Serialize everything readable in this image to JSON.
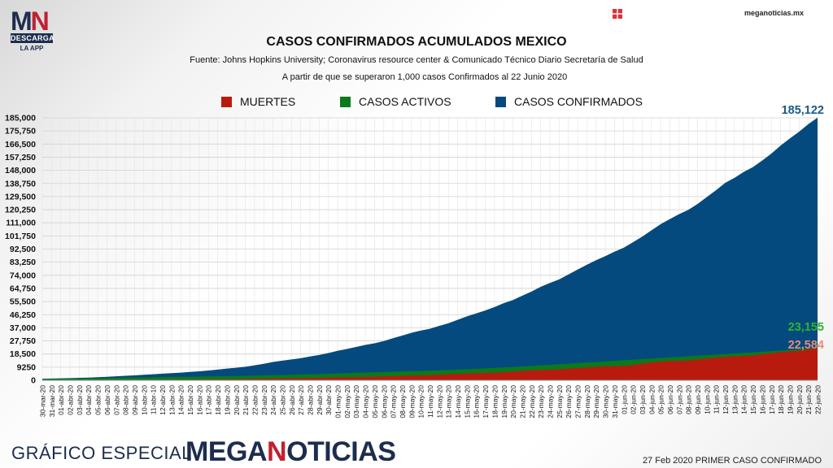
{
  "brand": {
    "logo_letters_1": "M",
    "logo_letters_2": "N",
    "logo_descarga": "DESCARGA",
    "logo_app": "LA APP",
    "site": "meganoticias.mx",
    "footer_left": "GRÁFICO ESPECIAL",
    "footer_brand_1": "MEGA",
    "footer_brand_2": "N",
    "footer_brand_3": "OTICIAS",
    "footer_right": "27 Feb 2020 PRIMER CASO CONFIRMADO",
    "colors": {
      "navy": "#1d2d4e",
      "red": "#c0212f"
    },
    "corner_icon": "grid-icon"
  },
  "chart_data": {
    "type": "area",
    "title": "CASOS CONFIRMADOS ACUMULADOS MEXICO",
    "subtitle": "Fuente: Johns Hopkins University; Coronavirus resource center & Comunicado Técnico Diario Secretaría de Salud",
    "subtitle2": "A partir de que se superaron 1,000 casos Confirmados al 22 Junio 2020",
    "ylim": [
      0,
      185000
    ],
    "yticks": [
      "0",
      "9250",
      "18,500",
      "27,750",
      "37,000",
      "46,250",
      "55,500",
      "64,750",
      "74,000",
      "83,250",
      "92,500",
      "101,750",
      "111,000",
      "120,250",
      "129,500",
      "138,750",
      "148,000",
      "157,250",
      "166,500",
      "175,750",
      "185,000"
    ],
    "grid": true,
    "legend_position": "top",
    "x": [
      "30-mar-20",
      "31-mar-20",
      "01-abr-20",
      "02-abr-20",
      "03-abr-20",
      "04-abr-20",
      "05-abr-20",
      "06-abr-20",
      "07-abr-20",
      "08-abr-20",
      "09-abr-20",
      "10-abr-20",
      "11-abr-10",
      "12-abr-20",
      "13-abr-20",
      "14-abr-20",
      "15-abr-20",
      "16-abr-20",
      "17-abr-20",
      "18-abr-20",
      "19-abr-20",
      "20-abr-20",
      "21-abr-20",
      "22-abr-20",
      "23-abr-20",
      "24-abr-20",
      "25-abr-20",
      "26-abr-20",
      "27-abr-20",
      "28-abr-20",
      "29-abr-20",
      "30-abr-20",
      "01-may-20",
      "02-may-20",
      "03-may-20",
      "04-may-20",
      "05-may-20",
      "06-may-20",
      "07-may-20",
      "08-may-20",
      "09-may-20",
      "10-may-20",
      "11-may-20",
      "12-may-20",
      "13-may-20",
      "14-may-20",
      "15-may-20",
      "16-may-20",
      "17-may-20",
      "18-may-20",
      "19-may-20",
      "20-may-20",
      "21-may-20",
      "22-may-20",
      "23-may-20",
      "24-may-20",
      "25-may-20",
      "26-may-20",
      "27-may-20",
      "28-may-20",
      "29-may-20",
      "30-may-20",
      "31-may-20",
      "01-jun-20",
      "02-jun-20",
      "03-jun-20",
      "04-jun-20",
      "05-jun-20",
      "06-jun-20",
      "07-jun-20",
      "08-jun-20",
      "09-jun-20",
      "10-jun-20",
      "11-jun-20",
      "12-jun-20",
      "13-jun-20",
      "14-jun-20",
      "15-jun-20",
      "16-jun-20",
      "17-jun-20",
      "18-jun-20",
      "19-jun-20",
      "20-jun-20",
      "21-jun-20",
      "22-jun-20"
    ],
    "series": [
      {
        "name": "CASOS CONFIRMADOS",
        "color": "#044a7e",
        "values": [
          1094,
          1215,
          1378,
          1510,
          1688,
          1890,
          2143,
          2439,
          2785,
          3181,
          3441,
          3844,
          4219,
          4661,
          5014,
          5399,
          5847,
          6297,
          6875,
          7497,
          8261,
          8772,
          9501,
          10544,
          11633,
          12872,
          13842,
          14677,
          15529,
          16752,
          17799,
          19224,
          20739,
          22088,
          23471,
          24905,
          26025,
          27634,
          29616,
          31522,
          33460,
          35022,
          36327,
          38324,
          40186,
          42595,
          45032,
          47144,
          49219,
          51633,
          54346,
          56594,
          59567,
          62527,
          65856,
          68620,
          71105,
          74560,
          78023,
          81400,
          84627,
          87512,
          90664,
          93435,
          97326,
          101238,
          105680,
          110026,
          113619,
          117103,
          120102,
          124301,
          129184,
          133974,
          139196,
          142690,
          146837,
          150264,
          154863,
          159793,
          165455,
          170485,
          175202,
          180545,
          185122
        ],
        "end_label": "185,122"
      },
      {
        "name": "CASOS ACTIVOS",
        "color": "#0a7a1c",
        "values": [
          900,
          1000,
          1100,
          1200,
          1300,
          1400,
          1500,
          1600,
          1700,
          1800,
          1900,
          2000,
          2100,
          2200,
          2300,
          2400,
          2500,
          2600,
          2700,
          2800,
          2900,
          3000,
          3150,
          3300,
          3450,
          3600,
          3750,
          3900,
          4050,
          4200,
          4400,
          4600,
          4800,
          5000,
          5200,
          5400,
          5600,
          5800,
          6000,
          6200,
          6400,
          6600,
          6800,
          7000,
          7200,
          7500,
          7800,
          8100,
          8400,
          8700,
          9000,
          9300,
          9700,
          10100,
          10500,
          10900,
          11300,
          11700,
          12100,
          12500,
          12900,
          13300,
          13700,
          14100,
          14500,
          14900,
          15300,
          15700,
          16100,
          16500,
          16900,
          17300,
          17700,
          18100,
          18500,
          18900,
          19300,
          19700,
          20100,
          20500,
          20900,
          21400,
          21900,
          22500,
          23155
        ],
        "end_label": "23,155"
      },
      {
        "name": "MUERTES",
        "color": "#b81b0e",
        "values": [
          28,
          29,
          37,
          50,
          60,
          79,
          94,
          125,
          141,
          174,
          194,
          233,
          273,
          296,
          332,
          406,
          449,
          486,
          546,
          650,
          686,
          712,
          857,
          970,
          1069,
          1221,
          1305,
          1351,
          1434,
          1569,
          1732,
          1859,
          1972,
          2061,
          2154,
          2271,
          2507,
          2704,
          2961,
          3160,
          3353,
          3465,
          3573,
          3926,
          4220,
          4477,
          4767,
          5045,
          5177,
          5332,
          5666,
          6090,
          6510,
          6989,
          7179,
          7394,
          7633,
          8134,
          8597,
          9044,
          9415,
          9779,
          9930,
          10167,
          10637,
          11729,
          12545,
          13170,
          13511,
          13699,
          14053,
          14649,
          15357,
          15944,
          16448,
          16872,
          17141,
          17580,
          18310,
          19080,
          19747,
          20394,
          20781,
          21825,
          22584
        ],
        "end_label": "22,584"
      }
    ]
  }
}
